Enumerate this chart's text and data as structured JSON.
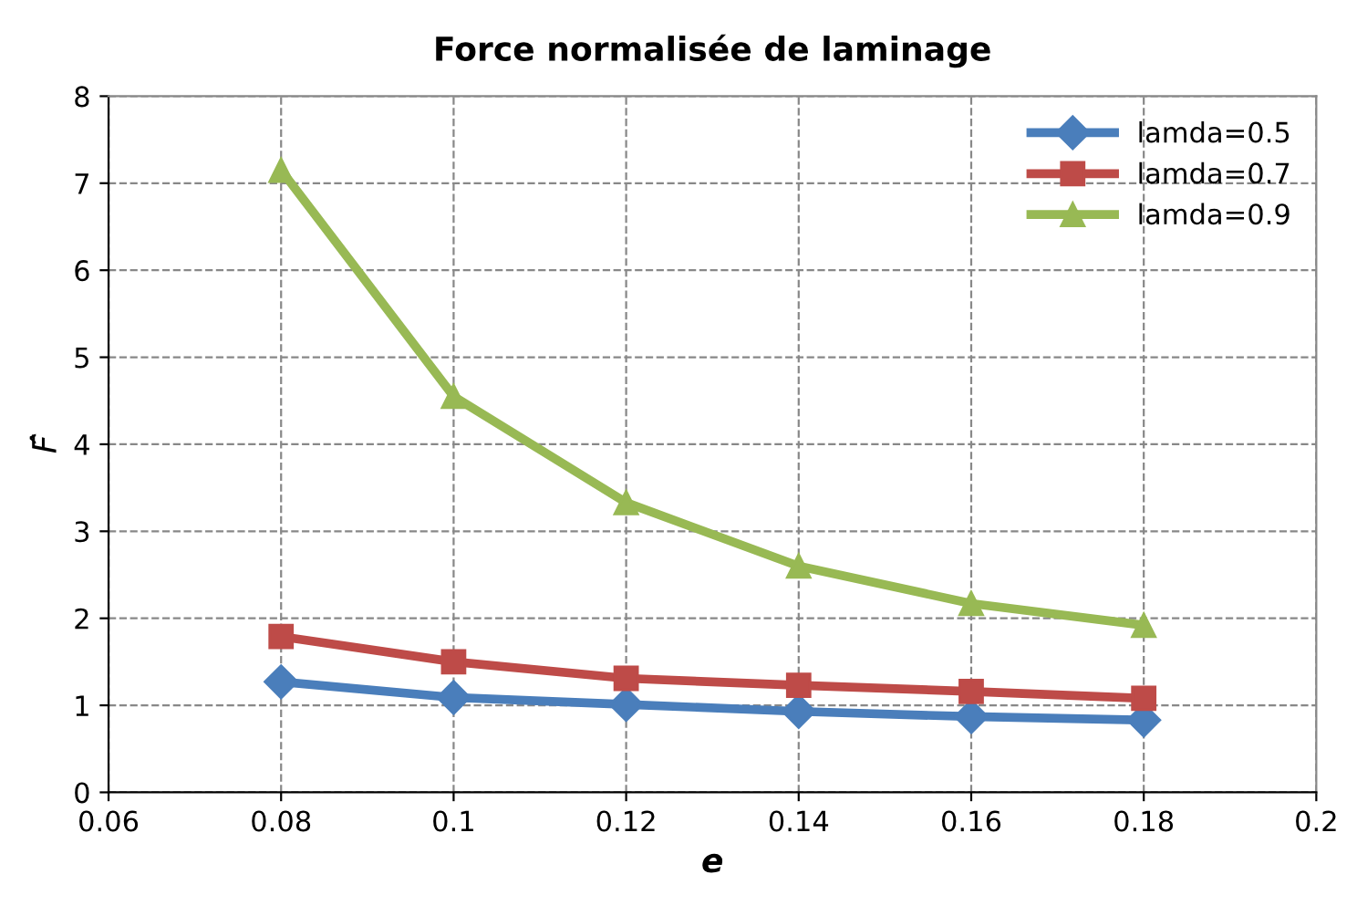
{
  "chart_data": {
    "type": "line",
    "title": "Force normalisée de laminage",
    "xlabel": "e",
    "ylabel": "F̂",
    "x": [
      0.08,
      0.1,
      0.12,
      0.14,
      0.16,
      0.18
    ],
    "series": [
      {
        "name": "lamda=0.5",
        "color": "#4a7ebb",
        "marker": "diamond",
        "values": [
          1.27,
          1.09,
          1.01,
          0.93,
          0.87,
          0.83
        ]
      },
      {
        "name": "lamda=0.7",
        "color": "#be4b48",
        "marker": "square",
        "values": [
          1.79,
          1.5,
          1.31,
          1.23,
          1.16,
          1.08
        ]
      },
      {
        "name": "lamda=0.9",
        "color": "#98b954",
        "marker": "triangle",
        "values": [
          7.15,
          4.55,
          3.33,
          2.6,
          2.17,
          1.92
        ]
      }
    ],
    "xlim": [
      0.06,
      0.2
    ],
    "xticks": [
      0.06,
      0.08,
      0.1,
      0.12,
      0.14,
      0.16,
      0.18,
      0.2
    ],
    "ylim": [
      0,
      8
    ],
    "yticks": [
      0,
      1,
      2,
      3,
      4,
      5,
      6,
      7,
      8
    ],
    "grid": true,
    "legend": "top right",
    "line_style": "solid"
  }
}
